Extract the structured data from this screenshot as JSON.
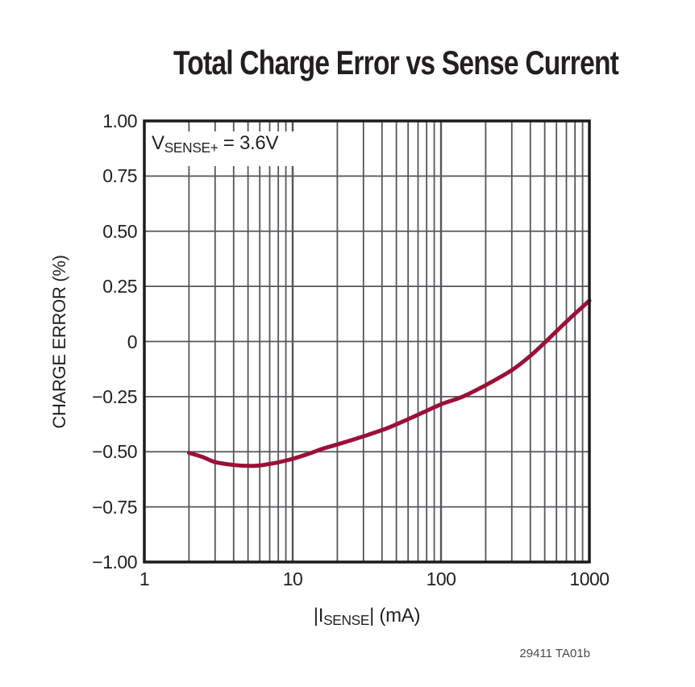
{
  "title": "Total Charge Error vs Sense Current",
  "annotation": {
    "prefix": "V",
    "sub": "SENSE+",
    "suffix": " = 3.6V"
  },
  "y_axis": {
    "label": "CHARGE ERROR (%)",
    "ticks": [
      "1.00",
      "0.75",
      "0.50",
      "0.25",
      "0",
      "−0.25",
      "−0.50",
      "−0.75",
      "−1.00"
    ]
  },
  "x_axis": {
    "label_prefix": "|I",
    "label_sub": "SENSE",
    "label_suffix": "| (mA)",
    "ticks": [
      "1",
      "10",
      "100",
      "1000"
    ]
  },
  "footer": "29411 TA01b",
  "colors": {
    "curve": "#9B1038",
    "grid": "#55565A",
    "frame": "#1C1C1E",
    "text": "#231F20"
  },
  "chart_data": {
    "type": "line",
    "title": "Total Charge Error vs Sense Current",
    "xlabel": "|ISENSE| (mA)",
    "ylabel": "CHARGE ERROR (%)",
    "annotation": "VSENSE+ = 3.6V",
    "x_scale": "log",
    "xlim": [
      1,
      1000
    ],
    "ylim": [
      -1.0,
      1.0
    ],
    "y_tick_step": 0.25,
    "grid": true,
    "legend": false,
    "series": [
      {
        "name": "Total Charge Error",
        "x": [
          2,
          2.5,
          3,
          4,
          5,
          6,
          7,
          8,
          10,
          13,
          16,
          20,
          30,
          40,
          50,
          70,
          100,
          140,
          200,
          300,
          400,
          500,
          700,
          1000
        ],
        "y": [
          -0.505,
          -0.525,
          -0.547,
          -0.56,
          -0.564,
          -0.562,
          -0.555,
          -0.548,
          -0.532,
          -0.508,
          -0.486,
          -0.467,
          -0.43,
          -0.402,
          -0.376,
          -0.332,
          -0.285,
          -0.25,
          -0.198,
          -0.13,
          -0.065,
          -0.005,
          0.09,
          0.185
        ]
      }
    ]
  }
}
